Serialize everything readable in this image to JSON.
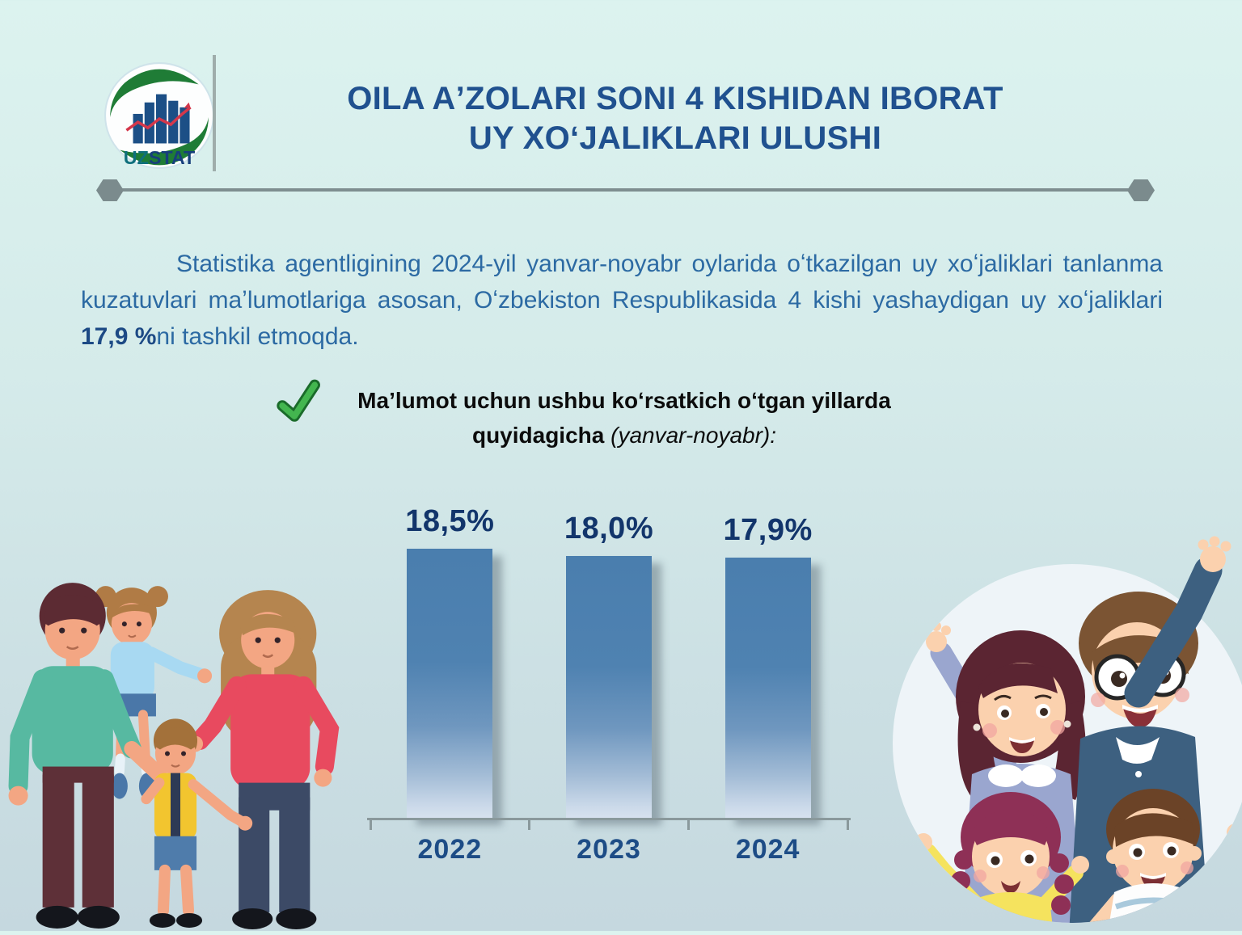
{
  "header": {
    "logo": {
      "text_uz": "UZ",
      "text_stat": "STAT"
    },
    "title_line1": "OILA AʼZOLARI SONI  4 KISHIDAN IBORAT",
    "title_line2": "UY XOʻJALIKLARI ULUSHI"
  },
  "intro": {
    "text_before": "Statistika agentligining 2024-yil yanvar-noyabr oylarida oʻtkazilgan uy xoʻjaliklari tanlanma kuzatuvlari maʼlumotlariga asosan, Oʻzbekiston Respublikasida 4 kishi yashaydigan uy xoʻjaliklari ",
    "highlight": "17,9 %",
    "text_after": "ni tashkil etmoqda."
  },
  "note": {
    "line1": "Maʼlumot uchun ushbu koʻrsatkich oʻtgan yillarda",
    "line2_bold": "quyidagicha",
    "line2_italic": " (yanvar-noyabr):"
  },
  "chart_data": {
    "type": "bar",
    "categories": [
      "2022",
      "2023",
      "2024"
    ],
    "values": [
      18.5,
      18.0,
      17.9
    ],
    "value_labels": [
      "18,5%",
      "18,0%",
      "17,9%"
    ],
    "title": "",
    "xlabel": "",
    "ylabel": "",
    "ylim": [
      0,
      20
    ],
    "grid": false,
    "legend": false,
    "bar_color_top": "#4a7eae",
    "bar_color_bottom": "#d6e1ee",
    "value_label_color": "#12356b",
    "year_label_color": "#1d4c86",
    "axis_color": "#8a999c"
  },
  "colors": {
    "background_top": "#dcf3ef",
    "background_bottom": "#c5d8df",
    "title_blue": "#20518f",
    "paragraph_blue": "#2c6aa3",
    "divider_gray": "#7e8e90",
    "check_green": "#43b64f"
  },
  "illustrations": {
    "left": "family-of-four-standing",
    "right": "family-of-four-waving-in-circle"
  }
}
